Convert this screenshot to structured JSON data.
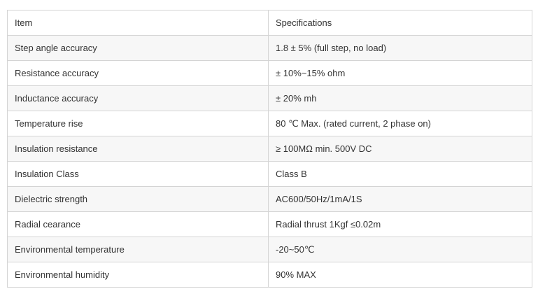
{
  "table": {
    "header": {
      "item": "Item",
      "spec": "Specifications"
    },
    "rows": [
      {
        "item": "Step angle accuracy",
        "spec": "1.8 ± 5% (full step, no load)"
      },
      {
        "item": "Resistance accuracy",
        "spec": "± 10%~15% ohm"
      },
      {
        "item": "Inductance accuracy",
        "spec": "± 20% mh"
      },
      {
        "item": "Temperature rise",
        "spec": "80 ℃ Max. (rated current, 2 phase on)"
      },
      {
        "item": "Insulation resistance",
        "spec": "≥ 100MΩ min. 500V DC"
      },
      {
        "item": "Insulation Class",
        "spec": "Class B"
      },
      {
        "item": "Dielectric strength",
        "spec": "AC600/50Hz/1mA/1S"
      },
      {
        "item": "Radial cearance",
        "spec": "Radial thrust 1Kgf ≤0.02m"
      },
      {
        "item": "Environmental temperature",
        "spec": "-20~50℃"
      },
      {
        "item": "Environmental humidity",
        "spec": "90% MAX"
      }
    ]
  }
}
